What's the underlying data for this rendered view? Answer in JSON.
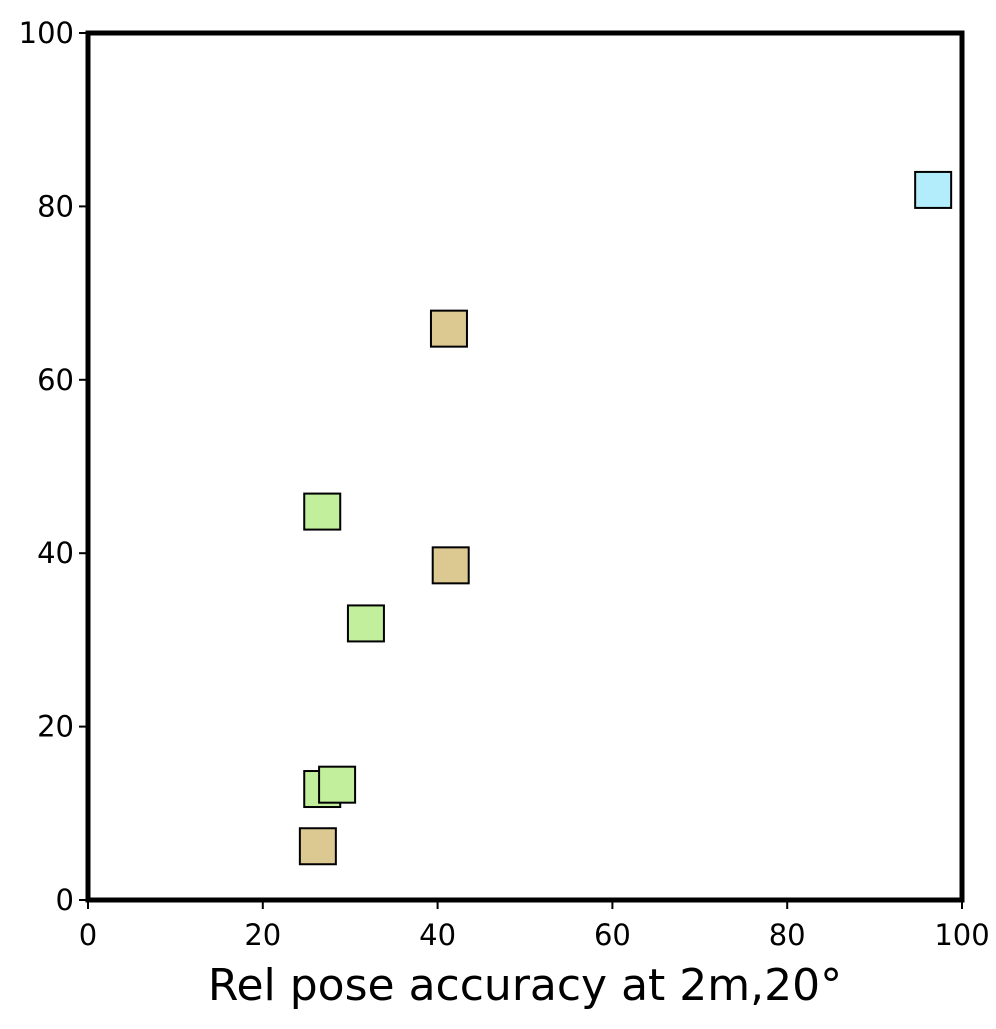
{
  "chart_data": {
    "type": "scatter",
    "title": "",
    "xlabel": "Rel pose accuracy at 2m,20°",
    "ylabel": "",
    "xlim": [
      0,
      100
    ],
    "ylim": [
      0,
      100
    ],
    "grid": false,
    "marker": "square",
    "x_ticks": [
      "0",
      "20",
      "40",
      "60",
      "80",
      "100"
    ],
    "y_ticks": [
      "0",
      "20",
      "40",
      "60",
      "80",
      "100"
    ],
    "colors": {
      "tan": "#dcc891",
      "green": "#c2ef9b",
      "blue": "#b3ecfa"
    },
    "points": [
      {
        "x": 26.3,
        "y": 6.2,
        "color": "tan"
      },
      {
        "x": 26.8,
        "y": 12.8,
        "color": "green"
      },
      {
        "x": 28.5,
        "y": 13.3,
        "color": "green"
      },
      {
        "x": 31.8,
        "y": 31.9,
        "color": "green"
      },
      {
        "x": 26.8,
        "y": 44.8,
        "color": "green"
      },
      {
        "x": 41.5,
        "y": 38.6,
        "color": "tan"
      },
      {
        "x": 41.3,
        "y": 65.9,
        "color": "tan"
      },
      {
        "x": 96.7,
        "y": 81.9,
        "color": "blue"
      }
    ]
  }
}
